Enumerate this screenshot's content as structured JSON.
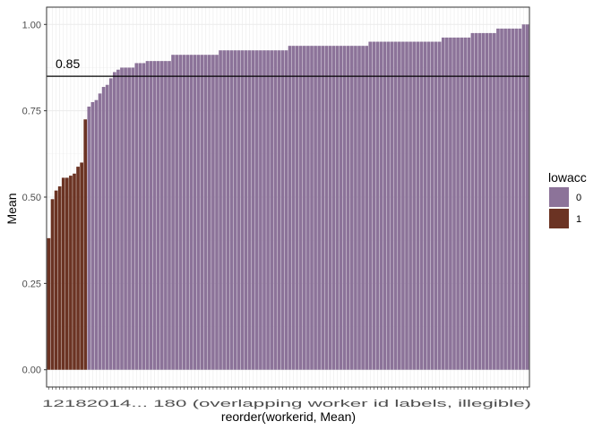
{
  "chart_data": {
    "type": "bar",
    "title": "",
    "xlabel": "reorder(workerid, Mean)",
    "ylabel": "Mean",
    "ylim": [
      -0.05,
      1.05
    ],
    "yticks": [
      0.0,
      0.25,
      0.5,
      0.75,
      1.0
    ],
    "ytick_labels": [
      "0.00",
      "0.25",
      "0.50",
      "0.75",
      "1.00"
    ],
    "xtick_labels_visible": "12182014... 180 (overlapping worker id labels, illegible)",
    "legend": {
      "title": "lowacc",
      "position": "right",
      "entries": [
        {
          "label": "0",
          "color": "#8C7399"
        },
        {
          "label": "1",
          "color": "#6B3323"
        }
      ]
    },
    "reference_line": {
      "y": 0.85,
      "label": "0.85",
      "color": "#000000"
    },
    "panel_background": "#ffffff",
    "grid": true,
    "values": [
      0.381,
      0.494,
      0.519,
      0.531,
      0.556,
      0.556,
      0.562,
      0.568,
      0.588,
      0.6,
      0.725,
      0.762,
      0.775,
      0.781,
      0.8,
      0.819,
      0.825,
      0.844,
      0.862,
      0.869,
      0.875,
      0.875,
      0.875,
      0.875,
      0.888,
      0.888,
      0.888,
      0.894,
      0.894,
      0.894,
      0.894,
      0.894,
      0.894,
      0.894,
      0.912,
      0.912,
      0.912,
      0.912,
      0.912,
      0.912,
      0.912,
      0.912,
      0.912,
      0.912,
      0.912,
      0.912,
      0.912,
      0.925,
      0.925,
      0.925,
      0.925,
      0.925,
      0.925,
      0.925,
      0.925,
      0.925,
      0.925,
      0.925,
      0.925,
      0.925,
      0.925,
      0.925,
      0.925,
      0.925,
      0.925,
      0.925,
      0.938,
      0.938,
      0.938,
      0.938,
      0.938,
      0.938,
      0.938,
      0.938,
      0.938,
      0.938,
      0.938,
      0.938,
      0.938,
      0.938,
      0.938,
      0.938,
      0.938,
      0.938,
      0.938,
      0.938,
      0.938,
      0.938,
      0.95,
      0.95,
      0.95,
      0.95,
      0.95,
      0.95,
      0.95,
      0.95,
      0.95,
      0.95,
      0.95,
      0.95,
      0.95,
      0.95,
      0.95,
      0.95,
      0.95,
      0.95,
      0.95,
      0.95,
      0.962,
      0.962,
      0.962,
      0.962,
      0.962,
      0.962,
      0.962,
      0.962,
      0.975,
      0.975,
      0.975,
      0.975,
      0.975,
      0.975,
      0.975,
      0.988,
      0.988,
      0.988,
      0.988,
      0.988,
      0.988,
      0.988,
      1.0,
      1.0
    ],
    "lowacc": [
      1,
      1,
      1,
      1,
      1,
      1,
      1,
      1,
      1,
      1,
      1,
      0,
      0,
      0,
      0,
      0,
      0,
      0,
      0,
      0,
      0,
      0,
      0,
      0,
      0,
      0,
      0,
      0,
      0,
      0,
      0,
      0,
      0,
      0,
      0,
      0,
      0,
      0,
      0,
      0,
      0,
      0,
      0,
      0,
      0,
      0,
      0,
      0,
      0,
      0,
      0,
      0,
      0,
      0,
      0,
      0,
      0,
      0,
      0,
      0,
      0,
      0,
      0,
      0,
      0,
      0,
      0,
      0,
      0,
      0,
      0,
      0,
      0,
      0,
      0,
      0,
      0,
      0,
      0,
      0,
      0,
      0,
      0,
      0,
      0,
      0,
      0,
      0,
      0,
      0,
      0,
      0,
      0,
      0,
      0,
      0,
      0,
      0,
      0,
      0,
      0,
      0,
      0,
      0,
      0,
      0,
      0,
      0,
      0,
      0,
      0,
      0,
      0,
      0,
      0,
      0,
      0,
      0,
      0,
      0,
      0,
      0,
      0,
      0,
      0,
      0,
      0,
      0,
      0,
      0,
      0,
      0
    ]
  }
}
